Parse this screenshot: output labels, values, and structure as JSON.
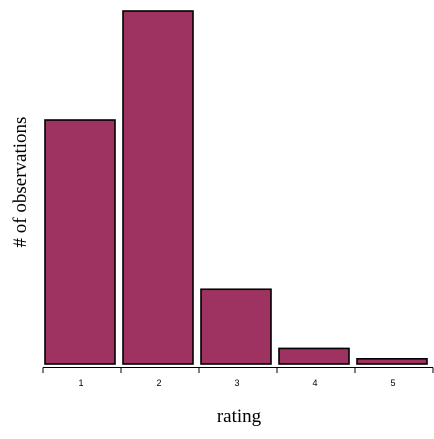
{
  "chart_data": {
    "type": "bar",
    "categories": [
      "1",
      "2",
      "3",
      "4",
      "5"
    ],
    "values": [
      235,
      340,
      72,
      15,
      5
    ],
    "xlabel": "rating",
    "ylabel": "# of observations",
    "ylim": [
      0,
      340
    ],
    "grid": false,
    "legend": "none",
    "colors": {
      "bar_fill": "#9e3362",
      "bar_stroke": "#000000",
      "axis": "#000000"
    }
  }
}
